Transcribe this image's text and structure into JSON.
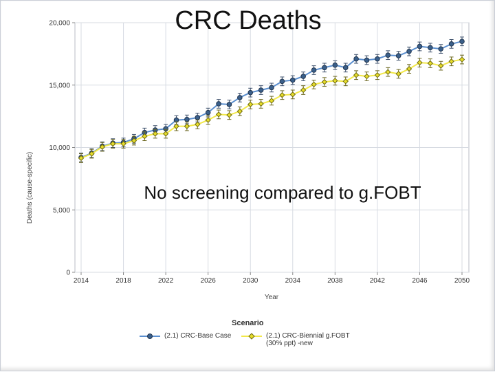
{
  "slide": {
    "title": "CRC Deaths",
    "annotation": "No screening compared to g.FOBT"
  },
  "chart_data": {
    "type": "line",
    "title": "CRC Deaths",
    "xlabel": "Year",
    "ylabel": "Deaths (cause-specific)",
    "xlim": [
      2014,
      2050
    ],
    "ylim": [
      0,
      20000
    ],
    "x_ticks": [
      "2014",
      "2018",
      "2022",
      "2026",
      "2030",
      "2034",
      "2038",
      "2042",
      "2046",
      "2050"
    ],
    "y_ticks": [
      "0",
      "5,000",
      "10,000",
      "15,000",
      "20,000"
    ],
    "x_tick_values": [
      2014,
      2018,
      2022,
      2026,
      2030,
      2034,
      2038,
      2042,
      2046,
      2050
    ],
    "y_tick_values": [
      0,
      5000,
      10000,
      15000,
      20000
    ],
    "grid": true,
    "legend_title": "Scenario",
    "legend_placement": "bottom",
    "x": [
      2014,
      2015,
      2016,
      2017,
      2018,
      2019,
      2020,
      2021,
      2022,
      2023,
      2024,
      2025,
      2026,
      2027,
      2028,
      2029,
      2030,
      2031,
      2032,
      2033,
      2034,
      2035,
      2036,
      2037,
      2038,
      2039,
      2040,
      2041,
      2042,
      2043,
      2044,
      2045,
      2046,
      2047,
      2048,
      2049,
      2050
    ],
    "series": [
      {
        "name": "(2.1) CRC-Base Case",
        "color": "#5b8fcf",
        "marker_fill": "#3a5f8a",
        "values": [
          9200,
          9550,
          10100,
          10350,
          10400,
          10700,
          11200,
          11400,
          11500,
          12200,
          12250,
          12400,
          12800,
          13500,
          13450,
          14000,
          14400,
          14600,
          14800,
          15300,
          15400,
          15700,
          16200,
          16400,
          16600,
          16400,
          17100,
          17000,
          17100,
          17400,
          17350,
          17700,
          18100,
          18000,
          17900,
          18300,
          18500
        ],
        "error": 350
      },
      {
        "name": "(2.1) CRC-Biennial g.FOBT (30% ppt) -new",
        "color": "#f2e84a",
        "marker_fill": "#e6dc2a",
        "values": [
          9150,
          9500,
          10050,
          10300,
          10300,
          10550,
          10900,
          11100,
          11100,
          11700,
          11700,
          11850,
          12200,
          12650,
          12600,
          12900,
          13450,
          13500,
          13750,
          14200,
          14250,
          14600,
          15050,
          15250,
          15350,
          15300,
          15800,
          15700,
          15800,
          16050,
          15900,
          16300,
          16800,
          16750,
          16550,
          16900,
          17050
        ],
        "error": 350
      }
    ]
  }
}
